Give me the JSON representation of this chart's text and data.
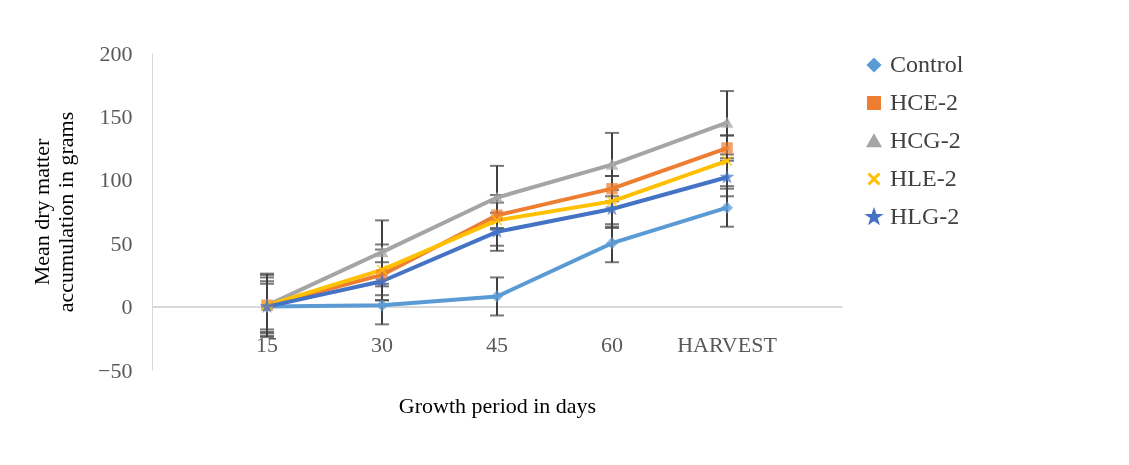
{
  "chart_data": {
    "type": "line",
    "xlabel": "Growth period in days",
    "ylabel": "Mean dry matter accumulation in grams",
    "categories": [
      "15",
      "30",
      "45",
      "60",
      "HARVEST"
    ],
    "ylim": [
      -50,
      200
    ],
    "yticks": [
      -50,
      0,
      50,
      100,
      150,
      200
    ],
    "grid": false,
    "legend": "right",
    "series": [
      {
        "name": "Control",
        "color": "#5b9bd5",
        "marker": "diamond",
        "values": [
          0,
          1,
          8,
          50,
          78
        ],
        "errors": [
          18,
          15,
          15,
          15,
          15
        ]
      },
      {
        "name": "HCE-2",
        "color": "#ed7d31",
        "marker": "square",
        "values": [
          1,
          25,
          72,
          93,
          125
        ],
        "errors": [
          22,
          20,
          10,
          10,
          10
        ]
      },
      {
        "name": "HCG-2",
        "color": "#a5a5a5",
        "marker": "triangle",
        "values": [
          1,
          43,
          86,
          112,
          145
        ],
        "errors": [
          25,
          25,
          25,
          25,
          25
        ]
      },
      {
        "name": "HLE-2",
        "color": "#ffc000",
        "marker": "cross",
        "values": [
          1,
          29,
          68,
          83,
          115
        ],
        "errors": [
          24,
          20,
          20,
          20,
          20
        ]
      },
      {
        "name": "HLG-2",
        "color": "#4472c4",
        "marker": "star",
        "values": [
          0,
          20,
          59,
          77,
          102
        ],
        "errors": [
          20,
          15,
          15,
          15,
          15
        ]
      }
    ]
  }
}
